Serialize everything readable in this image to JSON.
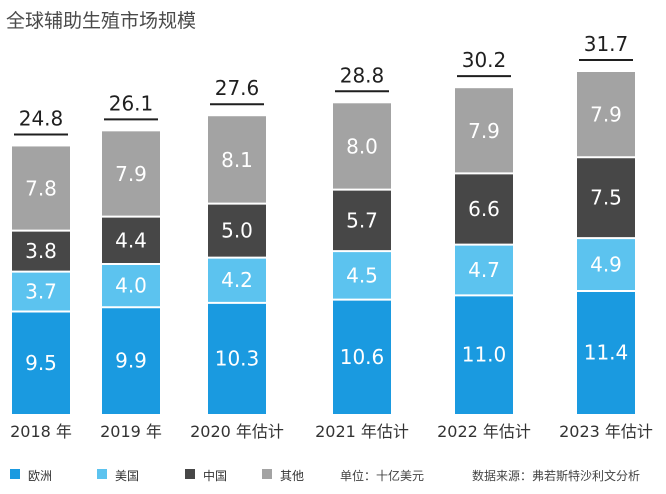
{
  "chart_data": {
    "type": "bar",
    "stacked": true,
    "title": "全球辅助生殖市场规模",
    "categories": [
      "2018 年",
      "2019 年",
      "2020 年估计",
      "2021 年估计",
      "2022 年估计",
      "2023 年估计"
    ],
    "series": [
      {
        "name": "欧洲",
        "color": "#1a9ae0",
        "values": [
          9.5,
          9.9,
          10.3,
          10.6,
          11.0,
          11.4
        ]
      },
      {
        "name": "美国",
        "color": "#5cc3ef",
        "values": [
          3.7,
          4.0,
          4.2,
          4.5,
          4.7,
          4.9
        ]
      },
      {
        "name": "中国",
        "color": "#474747",
        "values": [
          3.8,
          4.4,
          5.0,
          5.7,
          6.6,
          7.5
        ]
      },
      {
        "name": "其他",
        "color": "#a3a3a3",
        "values": [
          7.8,
          7.9,
          8.1,
          8.0,
          7.9,
          7.9
        ]
      }
    ],
    "value_labels": [
      [
        "9.5",
        "9.9",
        "10.3",
        "10.6",
        "11.0",
        "11.4"
      ],
      [
        "3.7",
        "4.0",
        "4.2",
        "4.5",
        "4.7",
        "4.9"
      ],
      [
        "3.8",
        "4.4",
        "5.0",
        "5.7",
        "6.6",
        "7.5"
      ],
      [
        "7.8",
        "7.9",
        "8.1",
        "8.0",
        "7.9",
        "7.9"
      ]
    ],
    "totals": [
      24.8,
      26.1,
      27.6,
      28.8,
      30.2,
      31.7
    ],
    "total_labels": [
      "24.8",
      "26.1",
      "27.6",
      "28.8",
      "30.2",
      "31.7"
    ],
    "ylim": [
      0,
      31.7
    ],
    "grid": false,
    "legend": "bottom-left",
    "unit_note": "单位：十亿美元",
    "source_note": "数据来源：弗若斯特沙利文分析"
  }
}
